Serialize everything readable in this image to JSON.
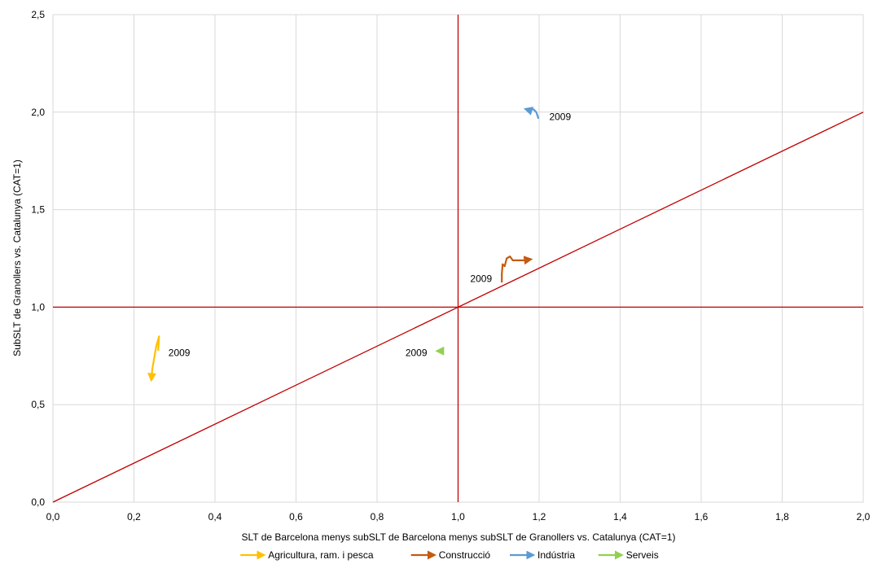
{
  "chart_data": {
    "type": "line",
    "xlabel": "SLT de Barcelona menys subSLT de Barcelona menys subSLT de Granollers vs. Catalunya (CAT=1)",
    "ylabel": "SubSLT de Granollers vs. Catalunya (CAT=1)",
    "xlim": [
      0,
      2
    ],
    "ylim": [
      0,
      2.5
    ],
    "x_ticks": [
      "0,0",
      "0,2",
      "0,4",
      "0,6",
      "0,8",
      "1,0",
      "1,2",
      "1,4",
      "1,6",
      "1,8",
      "2,0"
    ],
    "y_ticks": [
      "0,0",
      "0,5",
      "1,0",
      "1,5",
      "2,0",
      "2,5"
    ],
    "grid": "vertical",
    "legend_position": "bottom",
    "reference_lines": [
      {
        "kind": "horizontal",
        "value": 1.0,
        "color": "#C00000"
      },
      {
        "kind": "vertical",
        "value": 1.0,
        "color": "#C00000"
      },
      {
        "kind": "diagonal",
        "from": [
          0,
          0
        ],
        "to": [
          2,
          2
        ],
        "color": "#C00000"
      }
    ],
    "series": [
      {
        "name": "Agricultura, ram. i pesca",
        "color": "#FFC000",
        "points": [
          [
            0.26,
            0.78
          ],
          [
            0.262,
            0.85
          ],
          [
            0.255,
            0.8
          ],
          [
            0.25,
            0.74
          ],
          [
            0.245,
            0.68
          ],
          [
            0.243,
            0.63
          ]
        ],
        "annotation": "2009",
        "annotation_at": [
          0.285,
          0.75
        ]
      },
      {
        "name": "Construcció",
        "color": "#C55A11",
        "points": [
          [
            1.108,
            1.13
          ],
          [
            1.108,
            1.17
          ],
          [
            1.11,
            1.22
          ],
          [
            1.115,
            1.21
          ],
          [
            1.12,
            1.25
          ],
          [
            1.128,
            1.26
          ],
          [
            1.135,
            1.24
          ],
          [
            1.145,
            1.24
          ],
          [
            1.16,
            1.24
          ],
          [
            1.178,
            1.245
          ]
        ],
        "annotation": "2009",
        "annotation_at": [
          1.03,
          1.13
        ]
      },
      {
        "name": "Indústria",
        "color": "#5B9BD5",
        "points": [
          [
            1.198,
            1.97
          ],
          [
            1.193,
            2.0
          ],
          [
            1.186,
            2.015
          ],
          [
            1.176,
            2.01
          ],
          [
            1.168,
            2.015
          ]
        ],
        "annotation": "2009",
        "annotation_at": [
          1.225,
          1.96
        ]
      },
      {
        "name": "Serveis",
        "color": "#92D050",
        "points": [
          [
            0.96,
            0.775
          ],
          [
            0.95,
            0.775
          ]
        ],
        "annotation": "2009",
        "annotation_at": [
          0.87,
          0.75
        ]
      }
    ]
  }
}
